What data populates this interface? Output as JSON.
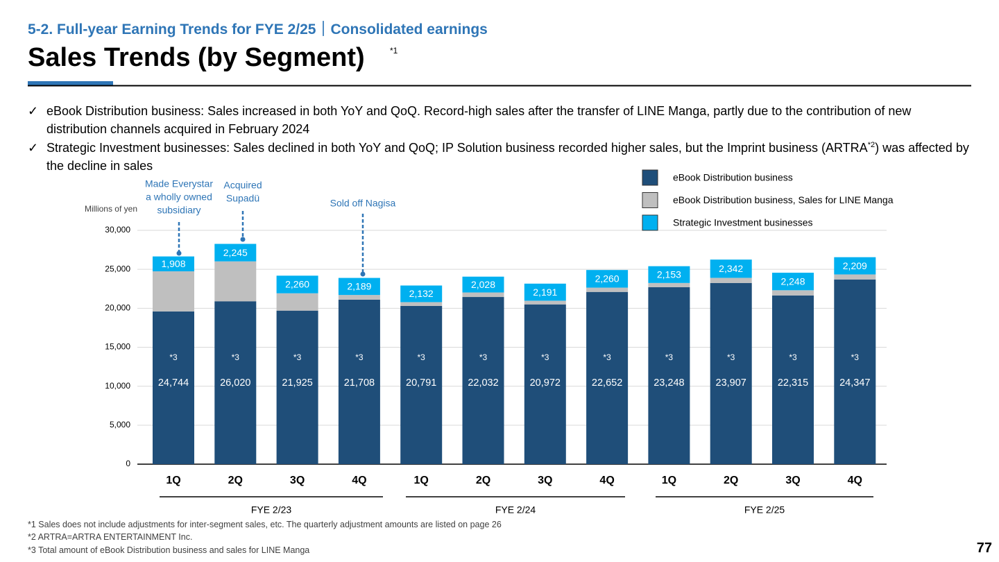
{
  "header": {
    "section": "5-2. Full-year Earning Trends for FYE 2/25｜Consolidated earnings",
    "title": "Sales Trends (by Segment)",
    "title_note": "*1"
  },
  "bullets": {
    "mark": "✓",
    "items": [
      {
        "text": "eBook Distribution business: Sales increased in both YoY and QoQ. Record-high sales after the transfer of LINE Manga, partly due to the contribution of new distribution channels acquired in February 2024",
        "sup": null,
        "after": null
      },
      {
        "text": "Strategic Investment businesses: Sales declined in both YoY and QoQ; IP Solution business recorded higher sales, but the Imprint business (ARTRA",
        "sup": "*2",
        "after": ") was affected by the decline in sales"
      }
    ]
  },
  "chart_data": {
    "type": "stacked_bar",
    "y_axis_label": "Millions of yen",
    "categories": [
      "1Q",
      "2Q",
      "3Q",
      "4Q",
      "1Q",
      "2Q",
      "3Q",
      "4Q",
      "1Q",
      "2Q",
      "3Q",
      "4Q"
    ],
    "groups": [
      "FYE 2/23",
      "FYE 2/24",
      "FYE 2/25"
    ],
    "series": [
      {
        "name": "eBook Distribution business",
        "color": "#1f4e79",
        "values": [
          19600,
          20900,
          19700,
          21100,
          20300,
          21450,
          20500,
          22100,
          22700,
          23250,
          21650,
          23700
        ]
      },
      {
        "name": "eBook Distribution business, Sales for LINE Manga",
        "color": "#bfbfbf",
        "values": [
          5144,
          5120,
          2225,
          608,
          491,
          582,
          472,
          552,
          548,
          657,
          665,
          647
        ]
      },
      {
        "name": "Strategic Investment businesses",
        "color": "#00b0f0",
        "values": [
          1908,
          2245,
          2260,
          2189,
          2132,
          2028,
          2191,
          2260,
          2153,
          2342,
          2248,
          2209
        ],
        "value_labels": [
          "1,908",
          "2,245",
          "2,260",
          "2,189",
          "2,132",
          "2,028",
          "2,191",
          "2,260",
          "2,153",
          "2,342",
          "2,248",
          "2,209"
        ]
      }
    ],
    "subtotals": {
      "note": "*3",
      "values": [
        24744,
        26020,
        21925,
        21708,
        20791,
        22032,
        20972,
        22652,
        23248,
        23907,
        22315,
        24347
      ],
      "value_labels": [
        "24,744",
        "26,020",
        "21,925",
        "21,708",
        "20,791",
        "22,032",
        "20,972",
        "22,652",
        "23,248",
        "23,907",
        "22,315",
        "24,347"
      ]
    },
    "annotations": [
      {
        "lines": [
          "Made Everystar",
          "a wholly owned",
          "subsidiary"
        ]
      },
      {
        "lines": [
          "Acquired",
          "Supadü"
        ]
      },
      {
        "lines": [
          "Sold off Nagisa"
        ]
      }
    ],
    "ylim": [
      0,
      30000
    ],
    "yticks": [
      0,
      {
        "value": 5000,
        "label": "5,000"
      },
      {
        "value": 10000,
        "label": "10,000"
      },
      {
        "value": 15000,
        "label": "15,000"
      },
      {
        "value": 20000,
        "label": "20,000"
      },
      {
        "value": 25000,
        "label": "25,000"
      },
      {
        "value": 30000,
        "label": "30,000"
      }
    ],
    "grid": true
  },
  "footnotes": [
    "*1 Sales does not include adjustments for inter-segment sales, etc. The quarterly adjustment amounts are listed on page 26",
    "*2 ARTRA=ARTRA ENTERTAINMENT Inc.",
    "*3 Total amount of eBook Distribution business and sales for LINE Manga"
  ],
  "page_number": "77"
}
